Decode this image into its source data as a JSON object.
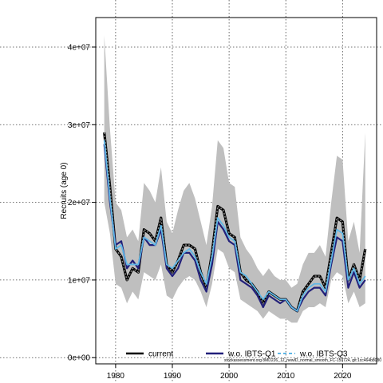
{
  "chart_data": {
    "type": "line",
    "title": "",
    "xlabel": "",
    "ylabel": "Recruits (age 0)",
    "xlim": [
      1976.5,
      2026
    ],
    "ylim": [
      -800000,
      43800000
    ],
    "x_ticks": [
      1980,
      1990,
      2000,
      2010,
      2020
    ],
    "x_tick_labels": [
      "1980",
      "1990",
      "2000",
      "2010",
      "2020"
    ],
    "y_ticks": [
      0,
      10000000,
      20000000,
      30000000,
      40000000
    ],
    "y_tick_labels": [
      "0e+00",
      "1e+07",
      "2e+07",
      "3e+07",
      "4e+07"
    ],
    "grid": true,
    "legend_position": "bottom",
    "footnote": "stockassessment.org 8MD226_12_newID_normal_smooth_FC-159724, git:1cc464b8080",
    "x": [
      1978,
      1979,
      1980,
      1981,
      1982,
      1983,
      1984,
      1985,
      1986,
      1987,
      1988,
      1989,
      1990,
      1991,
      1992,
      1993,
      1994,
      1995,
      1996,
      1997,
      1998,
      1999,
      2000,
      2001,
      2002,
      2003,
      2004,
      2005,
      2006,
      2007,
      2008,
      2009,
      2010,
      2011,
      2012,
      2013,
      2014,
      2015,
      2016,
      2017,
      2018,
      2019,
      2020,
      2021,
      2022,
      2023,
      2024
    ],
    "confidence_band": {
      "lower": [
        20000000,
        16000000,
        9500000,
        9000000,
        7000000,
        8500000,
        7500000,
        11000000,
        10500000,
        10000000,
        12000000,
        8000000,
        7500000,
        9000000,
        10000000,
        10500000,
        10000000,
        8500000,
        6500000,
        9500000,
        14000000,
        13500000,
        11500000,
        11000000,
        7500000,
        7000000,
        6500000,
        6000000,
        5000000,
        6000000,
        5500000,
        5000000,
        5000000,
        4500000,
        4500000,
        6000000,
        6500000,
        6500000,
        7000000,
        6500000,
        10000000,
        11000000,
        10500000,
        7000000,
        8500000,
        6500000,
        7000000
      ],
      "upper": [
        41500000,
        29500000,
        20000000,
        19000000,
        15500000,
        16500000,
        15000000,
        22500000,
        21500000,
        20000000,
        24500000,
        17500000,
        16000000,
        19000000,
        21500000,
        22500000,
        20500000,
        17500000,
        14500000,
        19500000,
        28000000,
        27000000,
        22500000,
        22000000,
        15500000,
        14000000,
        13000000,
        11500000,
        10500000,
        11500000,
        10500000,
        10000000,
        10000000,
        9000000,
        9500000,
        12000000,
        13500000,
        13500000,
        14500000,
        13000000,
        20000000,
        26000000,
        25500000,
        15000000,
        17500000,
        13500000,
        29000000
      ]
    },
    "series": [
      {
        "name": "current",
        "color": "#000000",
        "style": "solid",
        "values": [
          29000000,
          22000000,
          14000000,
          13000000,
          10000000,
          11500000,
          11000000,
          16500000,
          16000000,
          15000000,
          18000000,
          12000000,
          11000000,
          12500000,
          14500000,
          14500000,
          14000000,
          11000000,
          9000000,
          13500000,
          19500000,
          19000000,
          16000000,
          15500000,
          11000000,
          10000000,
          9500000,
          8500000,
          7000000,
          8500000,
          8000000,
          7500000,
          7500000,
          6500000,
          6000000,
          8500000,
          9500000,
          10500000,
          10500000,
          9000000,
          13500000,
          18000000,
          17500000,
          10000000,
          12000000,
          10000000,
          14000000
        ]
      },
      {
        "name": "w.o. IBTS-Q1",
        "color": "#22207a",
        "style": "solid",
        "values": [
          27500000,
          20000000,
          14500000,
          15000000,
          11500000,
          12500000,
          11500000,
          15500000,
          14500000,
          14500000,
          16500000,
          11500000,
          10500000,
          11500000,
          13500000,
          13500000,
          12500000,
          10000000,
          8500000,
          12000000,
          17500000,
          16500000,
          15000000,
          14500000,
          10000000,
          9500000,
          9000000,
          8000000,
          6500000,
          8000000,
          7500000,
          7000000,
          7500000,
          6500000,
          6000000,
          7500000,
          8500000,
          9000000,
          9000000,
          8000000,
          12000000,
          15500000,
          15000000,
          9000000,
          11000000,
          9000000,
          10000000
        ]
      },
      {
        "name": "w.o. IBTS-Q3",
        "color": "#5fb7e6",
        "style": "dashed",
        "values": [
          28000000,
          20500000,
          14000000,
          14500000,
          12000000,
          12000000,
          12000000,
          15500000,
          15000000,
          14500000,
          17000000,
          12000000,
          11500000,
          12500000,
          13500000,
          14000000,
          13000000,
          11000000,
          9500000,
          13000000,
          18000000,
          17000000,
          15500000,
          15000000,
          11000000,
          10500000,
          9500000,
          8500000,
          7500000,
          8500000,
          8000000,
          7500000,
          7500000,
          6500000,
          6000000,
          8000000,
          9000000,
          9500000,
          9500000,
          8500000,
          12500000,
          16500000,
          16000000,
          10000000,
          11500000,
          9500000,
          10500000
        ]
      }
    ]
  }
}
